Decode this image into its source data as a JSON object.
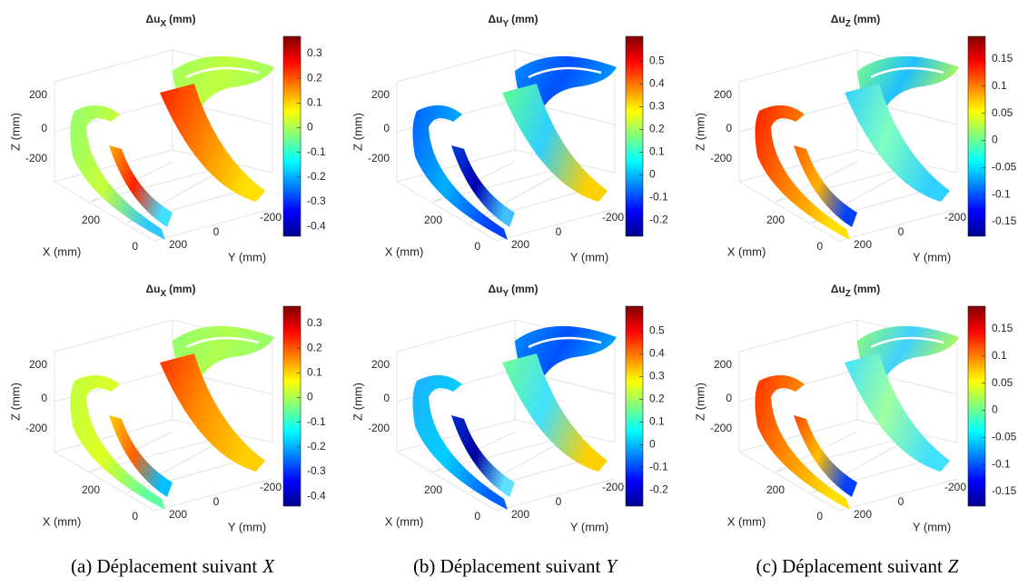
{
  "panels": [
    {
      "title": {
        "main": "Δu",
        "sub": "X",
        "unit": "(mm)"
      },
      "zlabel": "Z (mm)",
      "xlabel": "X (mm)",
      "ylabel": "Y (mm)",
      "zticks": [
        "200",
        "0",
        "-200"
      ],
      "xticks": [
        "200",
        "0"
      ],
      "yticks": [
        "200",
        "0",
        "-200"
      ],
      "clim": [
        -0.44,
        0.37
      ],
      "cticks": [
        "0.3",
        "0.2",
        "0.1",
        "0",
        "-0.1",
        "-0.2",
        "-0.3",
        "-0.4"
      ]
    },
    {
      "title": {
        "main": "Δu",
        "sub": "Y",
        "unit": "(mm)"
      },
      "zlabel": "Z (mm)",
      "xlabel": "X (mm)",
      "ylabel": "Y (mm)",
      "zticks": [
        "200",
        "0",
        "-200"
      ],
      "xticks": [
        "200",
        "0"
      ],
      "yticks": [
        "200",
        "0",
        "-200"
      ],
      "clim": [
        -0.27,
        0.61
      ],
      "cticks": [
        "0.5",
        "0.4",
        "0.3",
        "0.2",
        "0.1",
        "0",
        "-0.1",
        "-0.2"
      ]
    },
    {
      "title": {
        "main": "Δu",
        "sub": "Z",
        "unit": "(mm)"
      },
      "zlabel": "Z (mm)",
      "xlabel": "X (mm)",
      "ylabel": "Y (mm)",
      "zticks": [
        "200",
        "0",
        "-200"
      ],
      "xticks": [
        "200",
        "0"
      ],
      "yticks": [
        "200",
        "0",
        "-200"
      ],
      "clim": [
        -0.177,
        0.192
      ],
      "cticks": [
        "0.15",
        "0.1",
        "0.05",
        "0",
        "-0.05",
        "-0.1",
        "-0.15"
      ]
    },
    {
      "title": {
        "main": "Δu",
        "sub": "X",
        "unit": "(mm)"
      },
      "zlabel": "Z (mm)",
      "xlabel": "X (mm)",
      "ylabel": "Y (mm)",
      "zticks": [
        "200",
        "0",
        "-200"
      ],
      "xticks": [
        "200",
        "0"
      ],
      "yticks": [
        "200",
        "0",
        "-200"
      ],
      "clim": [
        -0.44,
        0.37
      ],
      "cticks": [
        "0.3",
        "0.2",
        "0.1",
        "0",
        "-0.1",
        "-0.2",
        "-0.3",
        "-0.4"
      ]
    },
    {
      "title": {
        "main": "Δu",
        "sub": "Y",
        "unit": "(mm)"
      },
      "zlabel": "Z (mm)",
      "xlabel": "X (mm)",
      "ylabel": "Y (mm)",
      "zticks": [
        "200",
        "0",
        "-200"
      ],
      "xticks": [
        "200",
        "0"
      ],
      "yticks": [
        "200",
        "0",
        "-200"
      ],
      "clim": [
        -0.27,
        0.61
      ],
      "cticks": [
        "0.5",
        "0.4",
        "0.3",
        "0.2",
        "0.1",
        "0",
        "-0.1",
        "-0.2"
      ]
    },
    {
      "title": {
        "main": "Δu",
        "sub": "Z",
        "unit": "(mm)"
      },
      "zlabel": "Z (mm)",
      "xlabel": "X (mm)",
      "ylabel": "Y (mm)",
      "zticks": [
        "200",
        "0",
        "-200"
      ],
      "xticks": [
        "200",
        "0"
      ],
      "yticks": [
        "200",
        "0",
        "-200"
      ],
      "clim": [
        -0.177,
        0.192
      ],
      "cticks": [
        "0.15",
        "0.1",
        "0.05",
        "0",
        "-0.05",
        "-0.1",
        "-0.15"
      ]
    }
  ],
  "captions": [
    {
      "label": "(a) Déplacement suivant",
      "var": "X"
    },
    {
      "label": "(b) Déplacement suivant",
      "var": "Y"
    },
    {
      "label": "(c) Déplacement suivant",
      "var": "Z"
    }
  ]
}
